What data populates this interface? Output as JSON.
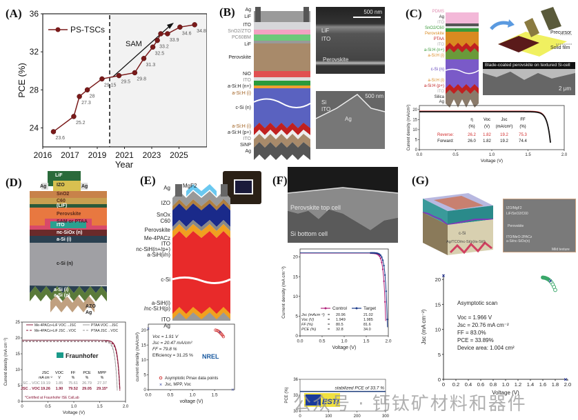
{
  "panels": {
    "A": {
      "label": "(A)",
      "annotation": "SAM"
    },
    "B": {
      "label": "(B)",
      "layers": [
        "Ag",
        "LiF",
        "ITO",
        "SnO2/ZTO",
        "PC60BM",
        "LiF",
        "Perovskite",
        "NiO",
        "ITO",
        "a-Si:H (n+)",
        "a-Si:H (i)",
        "c-Si (n)",
        "a-Si:H (i)",
        "a-Si:H (p+)",
        "ITO",
        "SiNP",
        "Ag"
      ],
      "sem_top": {
        "labels": [
          "LiF",
          "ITO",
          "Perovskite"
        ],
        "scale": "500 nm"
      },
      "sem_bottom": {
        "labels": [
          "Si",
          "ITO",
          "Ag"
        ],
        "scale": "500 nm"
      }
    },
    "C": {
      "label": "(C)",
      "layers": [
        "PDMS",
        "Ag",
        "ITO",
        "SnO2/C60",
        "Perovskite",
        "PTAA",
        "ITO",
        "a-Si:H (n+)",
        "a-Si:H (i)",
        "c-Si (n)",
        "a-Si:H (i)",
        "a-Si:H (p+)",
        "ITO",
        "Silica",
        "Ag"
      ],
      "coater": {
        "blade": "Blade coater",
        "knife": "N2 knife",
        "precursor": "Precursor",
        "film": "Solid film"
      },
      "sem": {
        "caption": "Blade-coated perovskite on textured Si-cell",
        "scale": "2 μm"
      }
    },
    "D": {
      "label": "(D)",
      "layers": [
        "LiF",
        "Ag",
        "IZO",
        "Ag",
        "SnO2",
        "C60",
        "(LiF)",
        "Perovskite",
        "SAM or PTAA",
        "ITO",
        "nc-SiOx (n)",
        "a-Si (i)",
        "c-Si (n)",
        "a-Si (i)",
        "a-Si (p)",
        "AZO",
        "Ag"
      ],
      "logo": {
        "name": "Fraunhofer",
        "sub1": "CalLab",
        "sub2": "PV Cells",
        "sub3": "ISE"
      }
    },
    "E": {
      "label": "(E)",
      "layers": [
        "Ag",
        "MgF2",
        "IZO",
        "SnOx",
        "C60",
        "Perovskite",
        "Me-4PACz",
        "ITO",
        "nc-SiH(n+/p+)",
        "a-SiH(i/n)",
        "c-Si",
        "a-SiH(i)",
        "/nc-Si:H(p)",
        "ITO",
        "Ag"
      ],
      "logo": "NREL"
    },
    "F": {
      "label": "(F)",
      "sem": {
        "top": "Perovskite top cell",
        "bottom": "Si bottom cell"
      },
      "logo": "ESTI"
    },
    "G": {
      "label": "(G)",
      "device_labels": [
        "c-Si",
        "Ag/TCO/nc-Si(p)/a-Si(i)"
      ],
      "sem_labels": [
        "IZO/MgF2",
        "LiF/SnO2/C60",
        "Perovskite",
        "ITO/MeO-2PACz",
        "a-Si/nc-SiOx(n)",
        "Mild texture"
      ]
    }
  },
  "watermark": "公众号 · 钙钛矿材料和器件",
  "chart_data": [
    {
      "id": "A",
      "type": "line",
      "title": "",
      "xlabel": "Year",
      "ylabel": "PCE (%)",
      "xticks": [
        "2016",
        "2017",
        "2019",
        "2021",
        "2023",
        "2025"
      ],
      "yticks": [
        24,
        28,
        32,
        36
      ],
      "ylim": [
        22,
        36
      ],
      "legend": {
        "label": "PS-TSCs",
        "position": "top-left"
      },
      "divider_label": "SAM",
      "series": [
        {
          "name": "PS-TSCs",
          "color": "#7a1a1a",
          "x": [
            0.35,
            1.25,
            1.5,
            1.85,
            2.5,
            3.25,
            3.95,
            4.35,
            4.75,
            4.95,
            5.1,
            5.4,
            5.95,
            6.6
          ],
          "values": [
            23.6,
            25.2,
            27.3,
            28,
            29.15,
            29.5,
            29.8,
            31.3,
            32.5,
            33.2,
            33.9,
            33.9,
            34.6,
            34.85
          ],
          "labels": [
            "23.6",
            "25.2",
            "27.3",
            "28",
            "29.15",
            "29.5",
            "29.8",
            "31.3",
            "32.5",
            "33.2",
            "",
            "33.9",
            "34.6",
            "34.85"
          ]
        }
      ]
    },
    {
      "id": "C",
      "type": "line",
      "xlabel": "Voltage (V)",
      "ylabel": "Current density (mA/cm²)",
      "xlim": [
        0,
        2.0
      ],
      "ylim": [
        0,
        22
      ],
      "xticks": [
        "0.0",
        "0.5",
        "1.0",
        "1.5",
        "2.0"
      ],
      "yticks": [
        "0",
        "5",
        "10",
        "15",
        "20"
      ],
      "table": {
        "headers": [
          "",
          "η",
          "Voc",
          "Jsc",
          "FF"
        ],
        "units": [
          "",
          "(%)",
          "(V)",
          "(mA/cm²)",
          "(%)"
        ],
        "rows": [
          [
            "Reverse:",
            "26.2",
            "1.82",
            "19.2",
            "75.3"
          ],
          [
            "Forward:",
            "26.0",
            "1.82",
            "19.2",
            "74.4"
          ]
        ]
      },
      "series": [
        {
          "name": "Reverse",
          "color": "#d12a2a",
          "jsc": 19.2,
          "voc": 1.82
        },
        {
          "name": "Forward",
          "color": "#111111",
          "jsc": 19.2,
          "voc": 1.82
        }
      ]
    },
    {
      "id": "D",
      "type": "line",
      "xlabel": "Voltage (V)",
      "ylabel": "Current density (mA cm⁻²)",
      "xlim": [
        0,
        2.0
      ],
      "ylim": [
        0,
        25
      ],
      "xticks": [
        "0",
        "0.5",
        "1.0",
        "1.5",
        "2.0"
      ],
      "yticks": [
        "0",
        "5",
        "10",
        "15",
        "20",
        "25"
      ],
      "legend": [
        "Me-4PACz+LiF VOC→JSC",
        "Me-4PACz+LiF JSC→VOC",
        "PTAA VOC→JSC",
        "PTAA JSC→VOC"
      ],
      "table": {
        "headers": [
          "",
          "JSC",
          "VOC",
          "FF",
          "PCE",
          "MPP"
        ],
        "units": [
          "",
          "mA cm⁻²",
          "V",
          "%",
          "%",
          "%"
        ],
        "rows": [
          [
            "JSC→VOC",
            "19.19",
            "1.85",
            "75.61",
            "26.79",
            "27.37"
          ],
          [
            "JSC→VOC",
            "19.26",
            "1.90",
            "79.52",
            "29.05",
            "29.15*"
          ]
        ]
      },
      "footnote": "*Certified at Fraunhofer ISE CalLab",
      "series": [
        {
          "name": "Me-4PACz+LiF",
          "color": "#8a1838",
          "jsc": 19.26,
          "voc": 1.9
        },
        {
          "name": "PTAA",
          "color": "#999999",
          "jsc": 19.19,
          "voc": 1.85
        }
      ]
    },
    {
      "id": "E",
      "type": "scatter",
      "xlabel": "voltage (V)",
      "ylabel": "current density (mA/cm²)",
      "xlim": [
        0,
        1.95
      ],
      "ylim": [
        0,
        22
      ],
      "xticks": [
        "0.0",
        "0.5",
        "1.0",
        "1.5"
      ],
      "yticks": [
        "0",
        "5",
        "10",
        "15",
        "20"
      ],
      "annotations": [
        "Voc = 1.91 V",
        "Jsc = 20.47 mA/cm²",
        "FF = 79.8 %",
        "Efficiency = 31.25 %"
      ],
      "legend": [
        "Asymptotic Pmax data points",
        "Jsc, MPP, Voc"
      ],
      "series": [
        {
          "name": "Asymptotic Pmax data points",
          "color": "#d43a3a",
          "x": [
            1.52,
            1.55,
            1.58,
            1.6,
            1.62,
            1.64,
            1.66,
            1.68,
            1.7
          ],
          "y": [
            20.0,
            19.9,
            19.7,
            19.5,
            19.2,
            18.9,
            18.6,
            18.2,
            17.8
          ]
        },
        {
          "name": "Jsc, MPP, Voc",
          "color": "#2a3a9a",
          "x": [
            0,
            1.62,
            1.91
          ],
          "y": [
            20.47,
            19.3,
            0
          ]
        }
      ]
    },
    {
      "id": "F-jv",
      "type": "line",
      "xlabel": "Voltage (V)",
      "ylabel": "Current density (mA cm⁻²)",
      "xlim": [
        0,
        2.0
      ],
      "ylim": [
        0,
        22
      ],
      "xticks": [
        "0.0",
        "0.5",
        "1.0",
        "1.5",
        "2.0"
      ],
      "yticks": [
        "0",
        "5",
        "10",
        "15",
        "20"
      ],
      "legend": [
        "Control",
        "Target"
      ],
      "table": {
        "rows": [
          [
            "Jsc (mAcm⁻²)",
            "=",
            "20.96",
            "21.02"
          ],
          [
            "Voc   (V)",
            "=",
            "1.949",
            "1.985"
          ],
          [
            "FF    (%)",
            "=",
            "80.5",
            "81.6"
          ],
          [
            "PCE (%)",
            "=",
            "32.8",
            "34.0"
          ]
        ]
      },
      "series": [
        {
          "name": "Control",
          "color": "#b0207a",
          "jsc": 20.96,
          "voc": 1.949
        },
        {
          "name": "Target",
          "color": "#1a3a8a",
          "jsc": 21.02,
          "voc": 1.985
        }
      ]
    },
    {
      "id": "F-stab",
      "type": "line",
      "xlabel": "Time (s)",
      "ylabel": "PCE (%)",
      "xlim": [
        0,
        300
      ],
      "ylim": [
        30,
        36
      ],
      "xticks": [
        "0",
        "100",
        "200",
        "300"
      ],
      "yticks": [
        "30",
        "33",
        "36"
      ],
      "annotation": "stabilized PCE of 33.7 %",
      "series": [
        {
          "name": "stabilized",
          "color": "#1a3a7a",
          "x": [
            0,
            300
          ],
          "y": [
            33.7,
            33.7
          ]
        }
      ]
    },
    {
      "id": "G",
      "type": "scatter",
      "xlabel": "Voltage (V)",
      "ylabel": "Jsc (mA cm⁻²)",
      "xlim": [
        0,
        2.0
      ],
      "ylim": [
        0,
        21
      ],
      "xticks": [
        "0",
        "0.2",
        "0.4",
        "0.6",
        "0.8",
        "1.0",
        "1.2",
        "1.4",
        "1.6",
        "1.8",
        "2.0"
      ],
      "yticks": [
        "0",
        "5",
        "10",
        "15",
        "20"
      ],
      "annotations": [
        "Asymptotic scan",
        "Voc = 1.966 V",
        "Jsc = 20.76 mA cm⁻²",
        "FF = 83.0%",
        "PCE = 33.89%",
        "Device area: 1.004 cm²"
      ],
      "series": [
        {
          "name": "Asymptotic scan",
          "color": "#3aa86a",
          "x": [
            1.6,
            1.62,
            1.64,
            1.66,
            1.68,
            1.7,
            1.72,
            1.74,
            1.76,
            1.78,
            1.8
          ],
          "y": [
            20.4,
            20.35,
            20.3,
            20.2,
            20.1,
            19.9,
            19.7,
            19.4,
            19.0,
            18.5,
            17.9
          ]
        },
        {
          "name": "Jsc, MPP, Voc",
          "color": "#1a2a9a",
          "x": [
            0,
            1.72,
            1.966
          ],
          "y": [
            20.76,
            19.75,
            0
          ]
        }
      ]
    }
  ]
}
